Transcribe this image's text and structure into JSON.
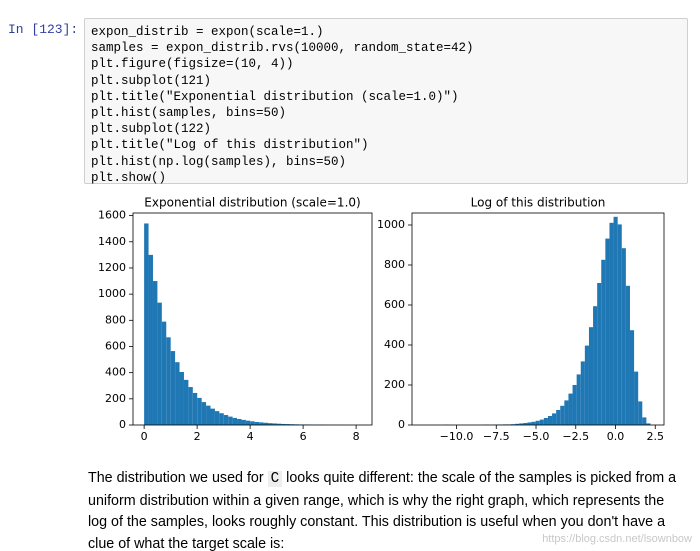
{
  "prompt": "In [123]:",
  "code": [
    "expon_distrib = expon(scale=1.)",
    "samples = expon_distrib.rvs(10000, random_state=42)",
    "plt.figure(figsize=(10, 4))",
    "plt.subplot(121)",
    "plt.title(\"Exponential distribution (scale=1.0)\")",
    "plt.hist(samples, bins=50)",
    "plt.subplot(122)",
    "plt.title(\"Log of this distribution\")",
    "plt.hist(np.log(samples), bins=50)",
    "plt.show()"
  ],
  "chart_data": [
    {
      "type": "histogram",
      "title": "Exponential distribution (scale=1.0)",
      "color": "#1f77b4",
      "bins": [
        0,
        0.167,
        0.334,
        0.501,
        0.668,
        0.835,
        1.002,
        1.169,
        1.336,
        1.503,
        1.67,
        1.837,
        2.004,
        2.171,
        2.338,
        2.505,
        2.672,
        2.839,
        3.006,
        3.173,
        3.34,
        3.507,
        3.674,
        3.841,
        4.008,
        4.175,
        4.342,
        4.509,
        4.676,
        4.843,
        5.01,
        5.177,
        5.344,
        5.511,
        5.678,
        5.845,
        6.012,
        6.179,
        6.346,
        6.513,
        6.68,
        6.847,
        7.014,
        7.181,
        7.348,
        7.515,
        7.682,
        7.849,
        8.016,
        8.183,
        8.35
      ],
      "values": [
        1540,
        1300,
        1100,
        935,
        790,
        670,
        565,
        480,
        405,
        345,
        290,
        245,
        207,
        175,
        148,
        125,
        106,
        90,
        76,
        64,
        54,
        46,
        39,
        33,
        28,
        23,
        20,
        17,
        14,
        12,
        10,
        8,
        7,
        6,
        5,
        4,
        4,
        3,
        2,
        2,
        2,
        1,
        1,
        1,
        1,
        0,
        0,
        0,
        0,
        1
      ],
      "xlim": [
        -0.42,
        8.6
      ],
      "xticks": [
        0,
        2,
        4,
        6,
        8
      ],
      "ylim": [
        0,
        1620
      ],
      "yticks": [
        0,
        200,
        400,
        600,
        800,
        1000,
        1200,
        1400,
        1600
      ]
    },
    {
      "type": "histogram",
      "title": "Log of this distribution",
      "color": "#1f77b4",
      "bins": [
        -10.7,
        -10.442,
        -10.184,
        -9.926,
        -9.668,
        -9.41,
        -9.152,
        -8.894,
        -8.636,
        -8.378,
        -8.12,
        -7.862,
        -7.604,
        -7.346,
        -7.088,
        -6.83,
        -6.572,
        -6.314,
        -6.056,
        -5.798,
        -5.54,
        -5.282,
        -5.024,
        -4.766,
        -4.508,
        -4.25,
        -3.992,
        -3.734,
        -3.476,
        -3.218,
        -2.96,
        -2.702,
        -2.444,
        -2.186,
        -1.928,
        -1.67,
        -1.412,
        -1.154,
        -0.896,
        -0.638,
        -0.38,
        -0.122,
        0.136,
        0.394,
        0.652,
        0.91,
        1.168,
        1.426,
        1.684,
        1.942,
        2.2
      ],
      "values": [
        1,
        0,
        0,
        0,
        0,
        0,
        0,
        0,
        0,
        1,
        1,
        1,
        2,
        2,
        3,
        3,
        4,
        6,
        8,
        10,
        13,
        16,
        21,
        27,
        35,
        45,
        58,
        75,
        96,
        123,
        157,
        200,
        253,
        318,
        397,
        489,
        594,
        710,
        826,
        932,
        1011,
        1041,
        1003,
        884,
        696,
        474,
        267,
        118,
        38,
        8
      ],
      "xlim": [
        -12.8,
        3.05
      ],
      "xticks": [
        {
          "value": -10,
          "label": "−10.0"
        },
        {
          "value": -7.5,
          "label": "−7.5"
        },
        {
          "value": -5,
          "label": "−5.0"
        },
        {
          "value": -2.5,
          "label": "−2.5"
        },
        {
          "value": 0,
          "label": "0.0"
        },
        2.5
      ],
      "ylim": [
        0,
        1060
      ],
      "yticks": [
        0,
        200,
        400,
        600,
        800,
        1000
      ]
    }
  ],
  "paragraph": {
    "before": "The distribution we used for ",
    "code": "C",
    "after": " looks quite different: the scale of the samples is picked from a uniform distribution within a given range, which is why the right graph, which represents the log of the samples, looks roughly constant. This distribution is useful when you don't have a clue of what the target scale is:"
  },
  "watermark": "https://blog.csdn.net/lsownbow"
}
